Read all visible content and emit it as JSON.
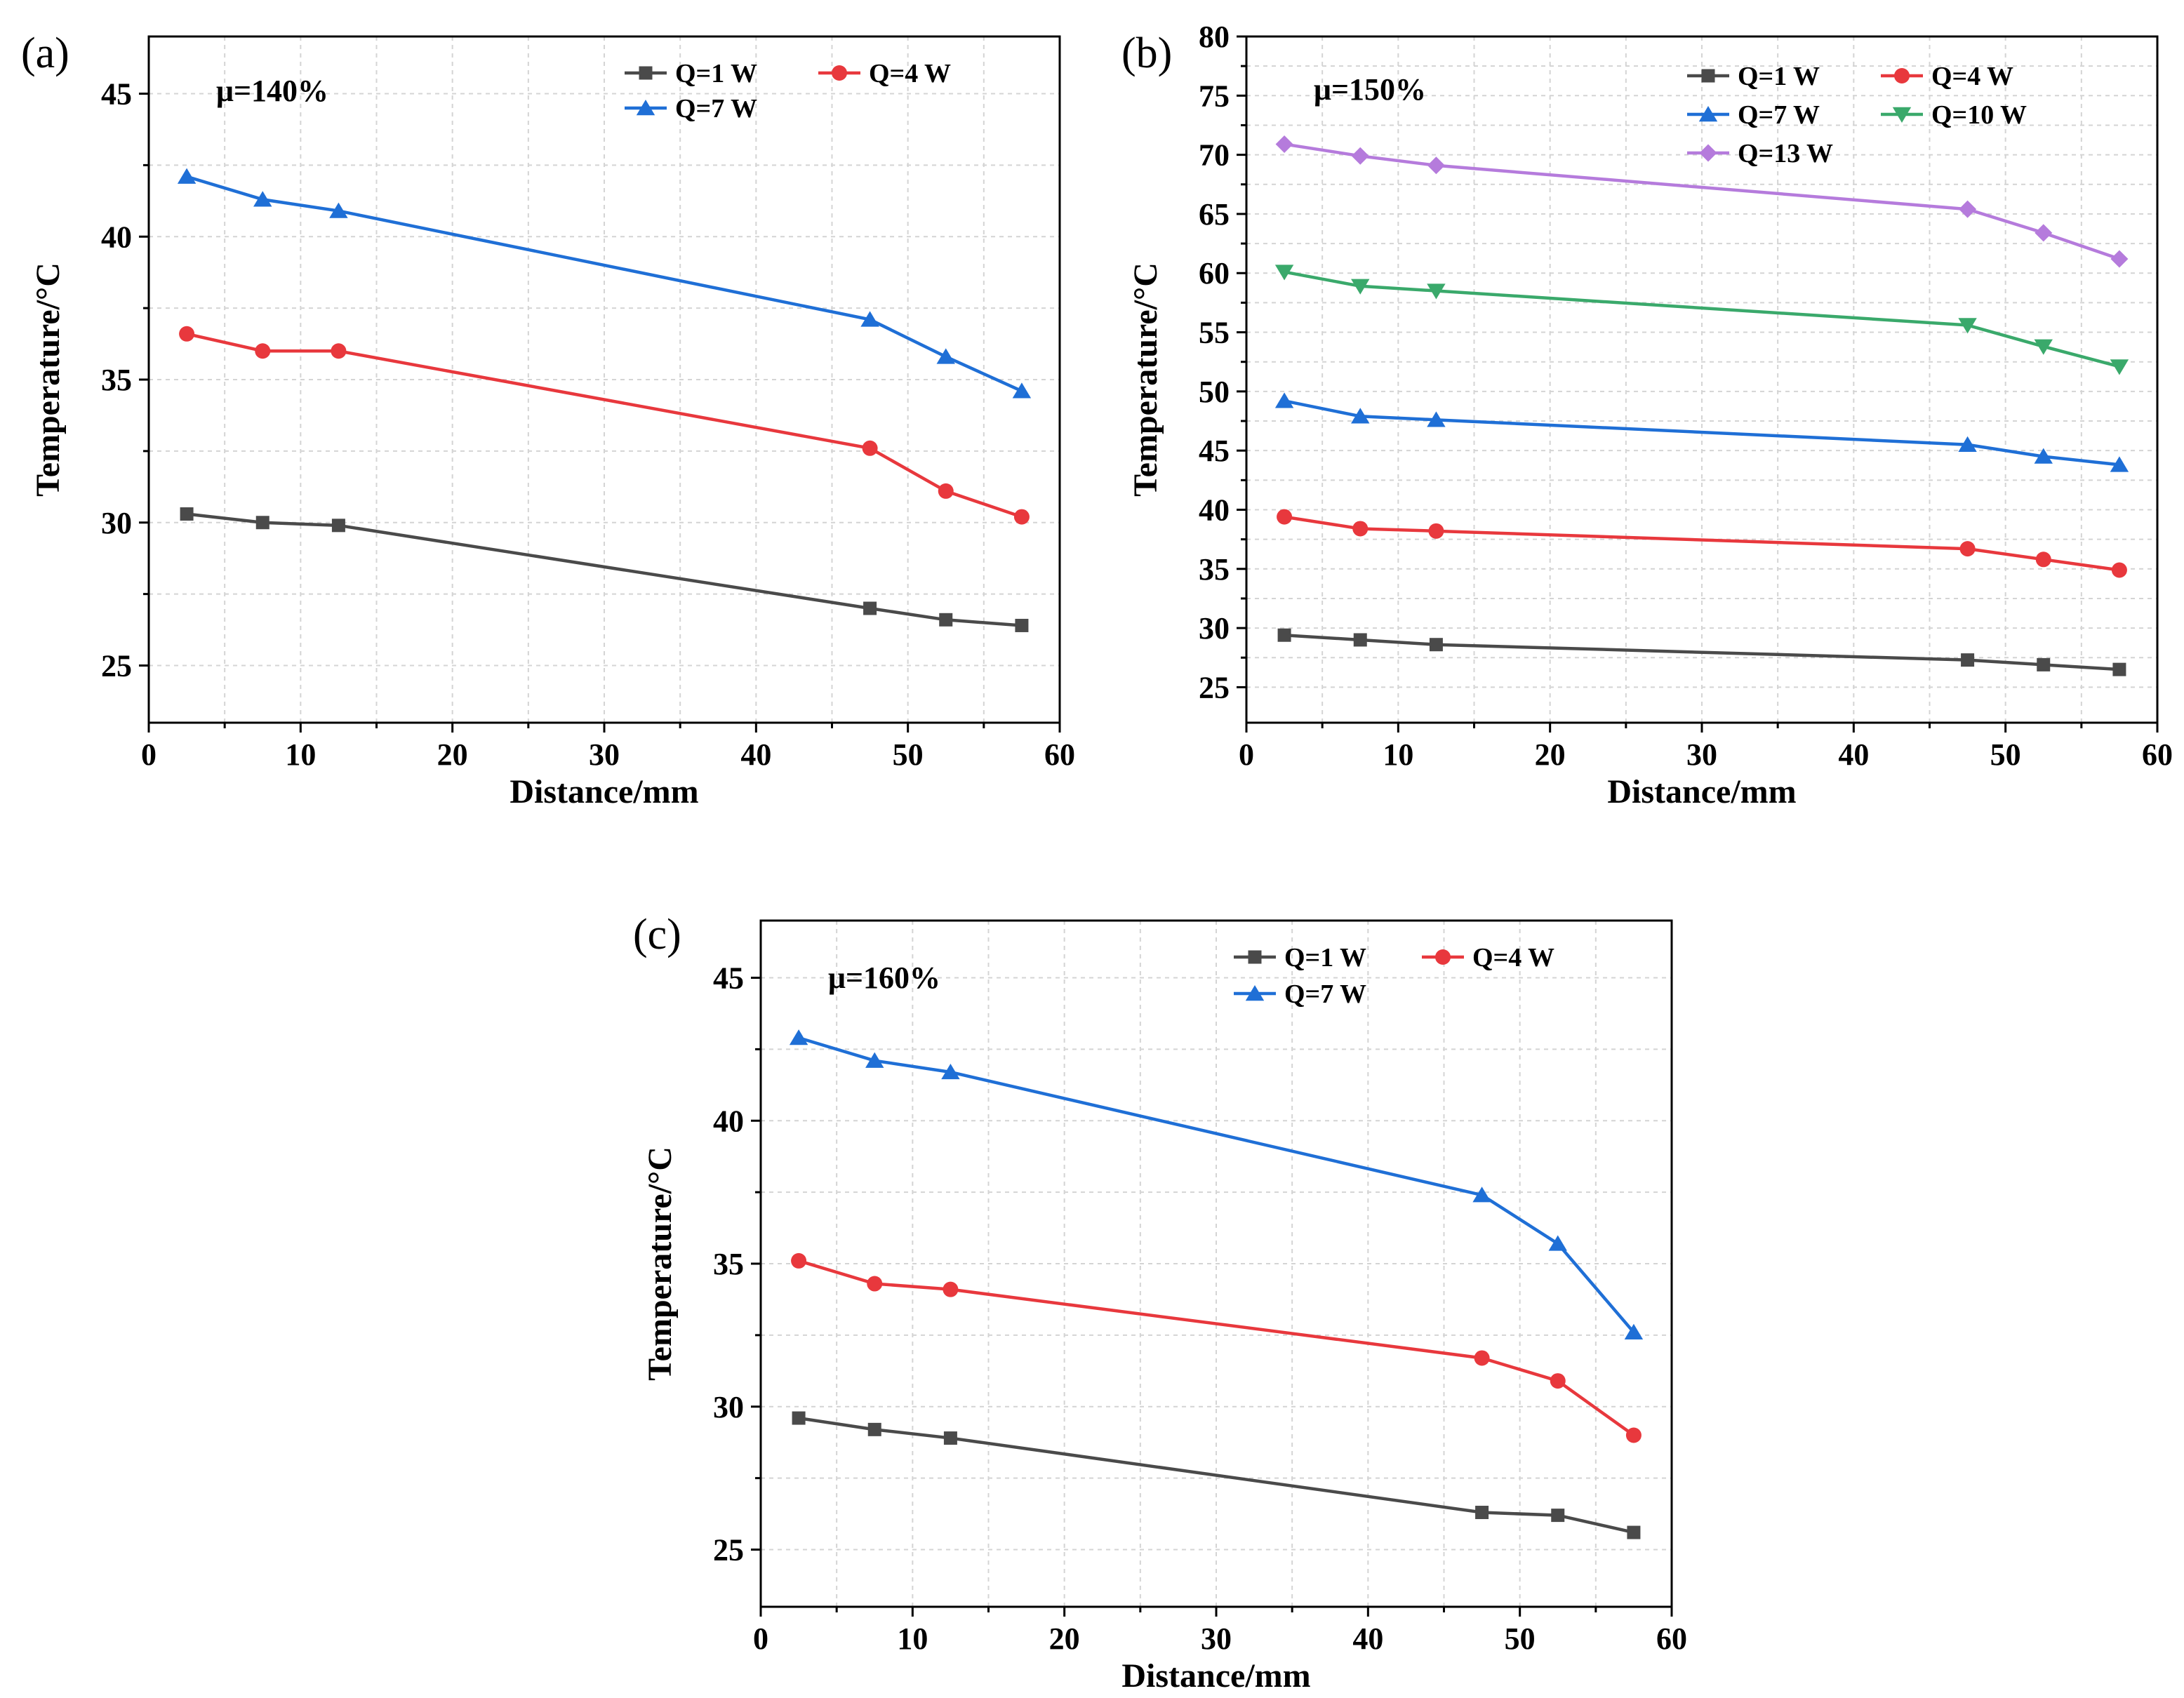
{
  "figure": {
    "background": "#ffffff"
  },
  "chart_data": [
    {
      "panel_label": "(a)",
      "type": "line",
      "annotation": "μ=140%",
      "xlabel": "Distance/mm",
      "ylabel": "Temperature/°C",
      "xlim": [
        0,
        60
      ],
      "ylim": [
        23,
        47
      ],
      "xticks": [
        0,
        10,
        20,
        30,
        40,
        50,
        60
      ],
      "yticks": [
        25,
        30,
        35,
        40,
        45
      ],
      "grid": true,
      "legend_position": "top-right",
      "x": [
        2.5,
        7.5,
        12.5,
        47.5,
        52.5,
        57.5
      ],
      "series": [
        {
          "name": "Q=1 W",
          "color": "#4a4a4a",
          "marker": "square",
          "values": [
            30.3,
            30.0,
            29.9,
            27.0,
            26.6,
            26.4
          ]
        },
        {
          "name": "Q=4 W",
          "color": "#e8383d",
          "marker": "circle",
          "values": [
            36.6,
            36.0,
            36.0,
            32.6,
            31.1,
            30.2
          ]
        },
        {
          "name": "Q=7 W",
          "color": "#1f6fd6",
          "marker": "triangle-up",
          "values": [
            42.1,
            41.3,
            40.9,
            37.1,
            35.8,
            34.6
          ]
        }
      ]
    },
    {
      "panel_label": "(b)",
      "type": "line",
      "annotation": "μ=150%",
      "xlabel": "Distance/mm",
      "ylabel": "Temperature/°C",
      "xlim": [
        0,
        60
      ],
      "ylim": [
        22,
        80
      ],
      "xticks": [
        0,
        10,
        20,
        30,
        40,
        50,
        60
      ],
      "yticks": [
        25,
        30,
        35,
        40,
        45,
        50,
        55,
        60,
        65,
        70,
        75,
        80
      ],
      "grid": true,
      "legend_position": "top-right",
      "x": [
        2.5,
        7.5,
        12.5,
        47.5,
        52.5,
        57.5
      ],
      "series": [
        {
          "name": "Q=1 W",
          "color": "#4a4a4a",
          "marker": "square",
          "values": [
            29.4,
            29.0,
            28.6,
            27.3,
            26.9,
            26.5
          ]
        },
        {
          "name": "Q=4 W",
          "color": "#e8383d",
          "marker": "circle",
          "values": [
            39.4,
            38.4,
            38.2,
            36.7,
            35.8,
            34.9
          ]
        },
        {
          "name": "Q=7 W",
          "color": "#1f6fd6",
          "marker": "triangle-up",
          "values": [
            49.2,
            47.9,
            47.6,
            45.5,
            44.5,
            43.8
          ]
        },
        {
          "name": "Q=10 W",
          "color": "#3aa96b",
          "marker": "triangle-down",
          "values": [
            60.1,
            58.9,
            58.5,
            55.6,
            53.8,
            52.1
          ]
        },
        {
          "name": "Q=13 W",
          "color": "#b57bdc",
          "marker": "diamond",
          "values": [
            70.9,
            69.9,
            69.1,
            65.4,
            63.4,
            61.2
          ]
        }
      ]
    },
    {
      "panel_label": "(c)",
      "type": "line",
      "annotation": "μ=160%",
      "xlabel": "Distance/mm",
      "ylabel": "Temperature/°C",
      "xlim": [
        0,
        60
      ],
      "ylim": [
        23,
        47
      ],
      "xticks": [
        0,
        10,
        20,
        30,
        40,
        50,
        60
      ],
      "yticks": [
        25,
        30,
        35,
        40,
        45
      ],
      "grid": true,
      "legend_position": "top-right",
      "x": [
        2.5,
        7.5,
        12.5,
        47.5,
        52.5,
        57.5
      ],
      "series": [
        {
          "name": "Q=1 W",
          "color": "#4a4a4a",
          "marker": "square",
          "values": [
            29.6,
            29.2,
            28.9,
            26.3,
            26.2,
            25.6
          ]
        },
        {
          "name": "Q=4 W",
          "color": "#e8383d",
          "marker": "circle",
          "values": [
            35.1,
            34.3,
            34.1,
            31.7,
            30.9,
            29.0
          ]
        },
        {
          "name": "Q=7 W",
          "color": "#1f6fd6",
          "marker": "triangle-up",
          "values": [
            42.9,
            42.1,
            41.7,
            37.4,
            35.7,
            32.6
          ]
        }
      ]
    }
  ]
}
